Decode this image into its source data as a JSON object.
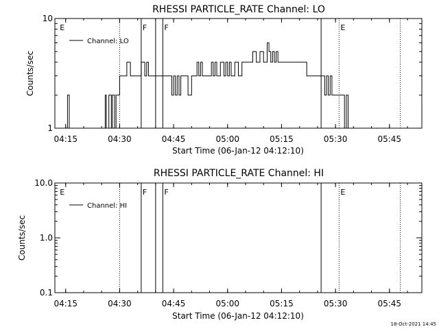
{
  "footer_date": "18-Oct-2021 14:45",
  "chart_data": [
    {
      "type": "line",
      "title": "RHESSI PARTICLE_RATE Channel: LO",
      "xlabel": "Start Time (06-Jan-12 04:12:10)",
      "ylabel": "Counts/sec",
      "yscale": "log",
      "xlim": [
        "04:12",
        "05:54"
      ],
      "ylim": [
        1,
        10
      ],
      "x_ticks": [
        "04:15",
        "04:30",
        "04:45",
        "05:00",
        "05:15",
        "05:30",
        "05:45"
      ],
      "y_ticks": [
        "1",
        "10"
      ],
      "legend": "Channel: LO",
      "legend_position": "top-left",
      "markers": [
        {
          "time": "04:13",
          "label": "E",
          "style": "none"
        },
        {
          "time": "04:30",
          "label": "",
          "style": "dotted"
        },
        {
          "time": "04:36",
          "label": "F",
          "style": "solid"
        },
        {
          "time": "04:40",
          "label": "",
          "style": "solid"
        },
        {
          "time": "04:42",
          "label": "F",
          "style": "solid"
        },
        {
          "time": "05:26",
          "label": "",
          "style": "solid"
        },
        {
          "time": "05:31",
          "label": "E",
          "style": "dotted"
        },
        {
          "time": "05:48",
          "label": "",
          "style": "dotted"
        }
      ],
      "series": [
        {
          "name": "Channel: LO",
          "x": [
            "04:15",
            "04:15.5",
            "04:16",
            "04:16.5",
            "04:17",
            "04:26",
            "04:26.3",
            "04:27",
            "04:27.7",
            "04:28",
            "04:28.6",
            "04:29",
            "04:29.5",
            "04:30",
            "04:31",
            "04:32",
            "04:33",
            "04:33.5",
            "04:34",
            "04:34.5",
            "04:35",
            "04:36",
            "04:37",
            "04:37.5",
            "04:38",
            "04:38.5",
            "04:39",
            "04:40",
            "04:41",
            "04:41.5",
            "04:42",
            "04:42.5",
            "04:43",
            "04:44",
            "04:44.5",
            "04:45",
            "04:45.5",
            "04:46",
            "04:46.5",
            "04:47",
            "04:47.5",
            "04:48",
            "04:48.5",
            "04:49",
            "04:50",
            "04:51",
            "04:51.5",
            "04:52",
            "04:52.5",
            "04:53",
            "04:54",
            "04:55",
            "04:55.5",
            "04:56",
            "04:56.5",
            "04:57",
            "04:58",
            "04:59",
            "04:59.5",
            "05:00",
            "05:00.5",
            "05:01",
            "05:02",
            "05:03",
            "05:04",
            "05:05",
            "05:06",
            "05:07",
            "05:08",
            "05:09",
            "05:10",
            "05:11",
            "05:11.5",
            "05:12",
            "05:12.5",
            "05:13",
            "05:13.5",
            "05:14",
            "05:15",
            "05:16",
            "05:17",
            "05:18",
            "05:19",
            "05:20",
            "05:21",
            "05:22",
            "05:23",
            "05:24",
            "05:25",
            "05:26",
            "05:27",
            "05:27.5",
            "05:28",
            "05:28.5",
            "05:29",
            "05:30",
            "05:31",
            "05:32",
            "05:32.5",
            "05:33",
            "05:33.5",
            "05:34"
          ],
          "values": [
            1,
            2,
            1,
            1,
            1,
            2,
            1,
            2,
            1,
            2,
            1,
            2,
            2,
            3,
            3,
            4,
            3,
            3,
            3,
            3,
            3,
            4,
            3,
            4,
            3,
            3,
            3,
            3,
            3,
            3,
            3,
            3,
            3,
            3,
            2,
            3,
            2,
            3,
            2,
            3,
            3,
            3,
            3,
            2,
            3,
            3,
            4,
            3,
            4,
            3,
            3,
            3,
            4,
            3,
            4,
            3,
            4,
            3,
            4,
            3,
            4,
            3,
            4,
            3,
            4,
            4,
            4,
            5,
            4,
            5,
            4,
            6,
            5,
            4,
            5,
            4,
            5,
            4,
            4,
            4,
            4,
            4,
            4,
            4,
            4,
            3,
            3,
            3,
            3,
            3,
            2,
            3,
            2,
            3,
            2,
            2,
            2,
            2,
            1,
            2,
            1,
            1
          ]
        }
      ]
    },
    {
      "type": "line",
      "title": "RHESSI PARTICLE_RATE Channel: HI",
      "xlabel": "Start Time (06-Jan-12 04:12:10)",
      "ylabel": "Counts/sec",
      "yscale": "log",
      "xlim": [
        "04:12",
        "05:54"
      ],
      "ylim": [
        0.1,
        10.0
      ],
      "x_ticks": [
        "04:15",
        "04:30",
        "04:45",
        "05:00",
        "05:15",
        "05:30",
        "05:45"
      ],
      "y_ticks": [
        "0.1",
        "1.0",
        "10.0"
      ],
      "legend": "Channel: HI",
      "legend_position": "top-left",
      "markers": [
        {
          "time": "04:13",
          "label": "E",
          "style": "none"
        },
        {
          "time": "04:30",
          "label": "",
          "style": "dotted"
        },
        {
          "time": "04:36",
          "label": "F",
          "style": "solid"
        },
        {
          "time": "04:40",
          "label": "",
          "style": "solid"
        },
        {
          "time": "04:42",
          "label": "F",
          "style": "solid"
        },
        {
          "time": "05:26",
          "label": "",
          "style": "solid"
        },
        {
          "time": "05:31",
          "label": "E",
          "style": "dotted"
        },
        {
          "time": "05:48",
          "label": "",
          "style": "dotted"
        }
      ],
      "series": [
        {
          "name": "Channel: HI",
          "x": [],
          "values": []
        }
      ]
    }
  ]
}
